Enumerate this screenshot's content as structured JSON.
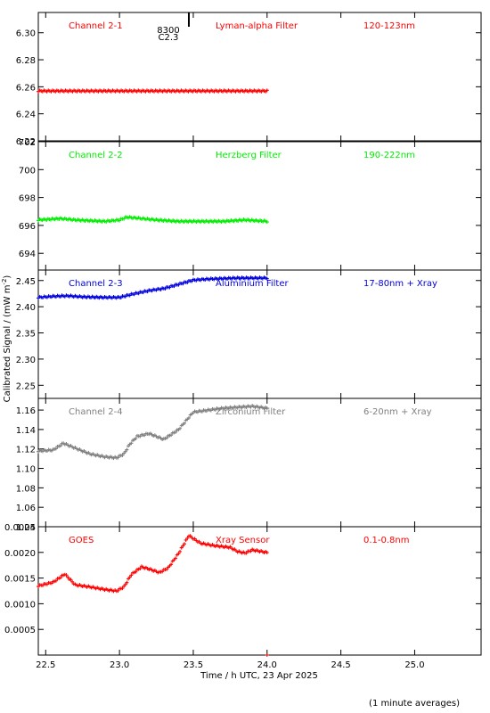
{
  "chart_data": {
    "type": "scatter",
    "ylabel": "Calibrated Signal / (mW m",
    "ylabel_sup": "-2",
    "ylabel_end": ")",
    "xlabel": "Time / h UTC, 23 Apr 2025",
    "footnote": "(1 minute averages)",
    "xlim": [
      22.45,
      25.45
    ],
    "x_ticks": [
      "22.5",
      "23.0",
      "23.5",
      "24.0",
      "24.5",
      "25.0"
    ],
    "x_tick_values": [
      22.5,
      23.0,
      23.5,
      24.0,
      24.5,
      25.0
    ],
    "marker_label": [
      "8300",
      "C2.3"
    ],
    "marker_x": 23.47,
    "panels": [
      {
        "name": "Channel 2-1",
        "filter": "Lyman-alpha Filter",
        "band": "120-123nm",
        "color": "#ff0000",
        "ylim": [
          6.22,
          6.315
        ],
        "y_ticks": [
          "6.22",
          "6.24",
          "6.26",
          "6.28",
          "6.30"
        ],
        "y_tick_values": [
          6.22,
          6.24,
          6.26,
          6.28,
          6.3
        ],
        "x": [
          22.45,
          24.0
        ],
        "y": [
          6.257,
          6.257
        ]
      },
      {
        "name": "Channel 2-2",
        "filter": "Herzberg Filter",
        "band": "190-222nm",
        "color": "#00ee00",
        "ylim": [
          692.8,
          702.0
        ],
        "y_ticks": [
          "694",
          "696",
          "698",
          "700",
          "702"
        ],
        "y_tick_values": [
          694,
          696,
          698,
          700,
          702
        ],
        "x": [
          22.45,
          22.6,
          22.7,
          22.9,
          23.0,
          23.05,
          23.15,
          23.25,
          23.4,
          23.55,
          23.7,
          23.85,
          24.0
        ],
        "y": [
          696.4,
          696.5,
          696.4,
          696.3,
          696.4,
          696.6,
          696.5,
          696.4,
          696.3,
          696.3,
          696.3,
          696.4,
          696.3
        ]
      },
      {
        "name": "Channel 2-3",
        "filter": "Aluminium Filter",
        "band": "17-80nm + Xray",
        "color": "#0000dd",
        "ylim": [
          2.225,
          2.47
        ],
        "y_ticks": [
          "2.25",
          "2.30",
          "2.35",
          "2.40",
          "2.45"
        ],
        "y_tick_values": [
          2.25,
          2.3,
          2.35,
          2.4,
          2.45
        ],
        "x": [
          22.45,
          22.55,
          22.65,
          22.75,
          22.9,
          23.0,
          23.1,
          23.2,
          23.3,
          23.4,
          23.5,
          23.6,
          23.7,
          23.8,
          23.9,
          24.0
        ],
        "y": [
          2.418,
          2.42,
          2.421,
          2.419,
          2.418,
          2.418,
          2.425,
          2.431,
          2.435,
          2.443,
          2.451,
          2.453,
          2.454,
          2.455,
          2.455,
          2.455
        ]
      },
      {
        "name": "Channel 2-4",
        "filter": "Zirconium Filter",
        "band": "6-20nm + Xray",
        "color": "#808080",
        "ylim": [
          1.04,
          1.172
        ],
        "y_ticks": [
          "1.04",
          "1.06",
          "1.08",
          "1.10",
          "1.12",
          "1.14",
          "1.16"
        ],
        "y_tick_values": [
          1.04,
          1.06,
          1.08,
          1.1,
          1.12,
          1.14,
          1.16
        ],
        "x": [
          22.45,
          22.55,
          22.62,
          22.7,
          22.8,
          22.9,
          22.98,
          23.03,
          23.07,
          23.12,
          23.2,
          23.25,
          23.3,
          23.4,
          23.5,
          23.6,
          23.7,
          23.8,
          23.9,
          24.0
        ],
        "y": [
          1.118,
          1.119,
          1.126,
          1.121,
          1.115,
          1.112,
          1.111,
          1.115,
          1.125,
          1.133,
          1.136,
          1.133,
          1.13,
          1.14,
          1.158,
          1.16,
          1.162,
          1.163,
          1.164,
          1.162
        ]
      },
      {
        "name": "GOES",
        "filter": "Xray Sensor",
        "band": "0.1-0.8nm",
        "color": "#ff0000",
        "ylim": [
          0.0,
          0.0025
        ],
        "y_ticks": [
          "0.0005",
          "0.0010",
          "0.0015",
          "0.0020",
          "0.0025"
        ],
        "y_tick_values": [
          0.0005,
          0.001,
          0.0015,
          0.002,
          0.0025
        ],
        "x": [
          22.45,
          22.55,
          22.63,
          22.7,
          22.8,
          22.9,
          22.98,
          23.03,
          23.08,
          23.15,
          23.2,
          23.27,
          23.33,
          23.4,
          23.47,
          23.55,
          23.65,
          23.75,
          23.8,
          23.85,
          23.9,
          24.0
        ],
        "y": [
          0.00135,
          0.00142,
          0.00158,
          0.00137,
          0.00133,
          0.00128,
          0.00125,
          0.00133,
          0.00157,
          0.00172,
          0.00168,
          0.00161,
          0.0017,
          0.00198,
          0.00233,
          0.00218,
          0.00213,
          0.0021,
          0.00202,
          0.00199,
          0.00205,
          0.002
        ]
      }
    ]
  }
}
